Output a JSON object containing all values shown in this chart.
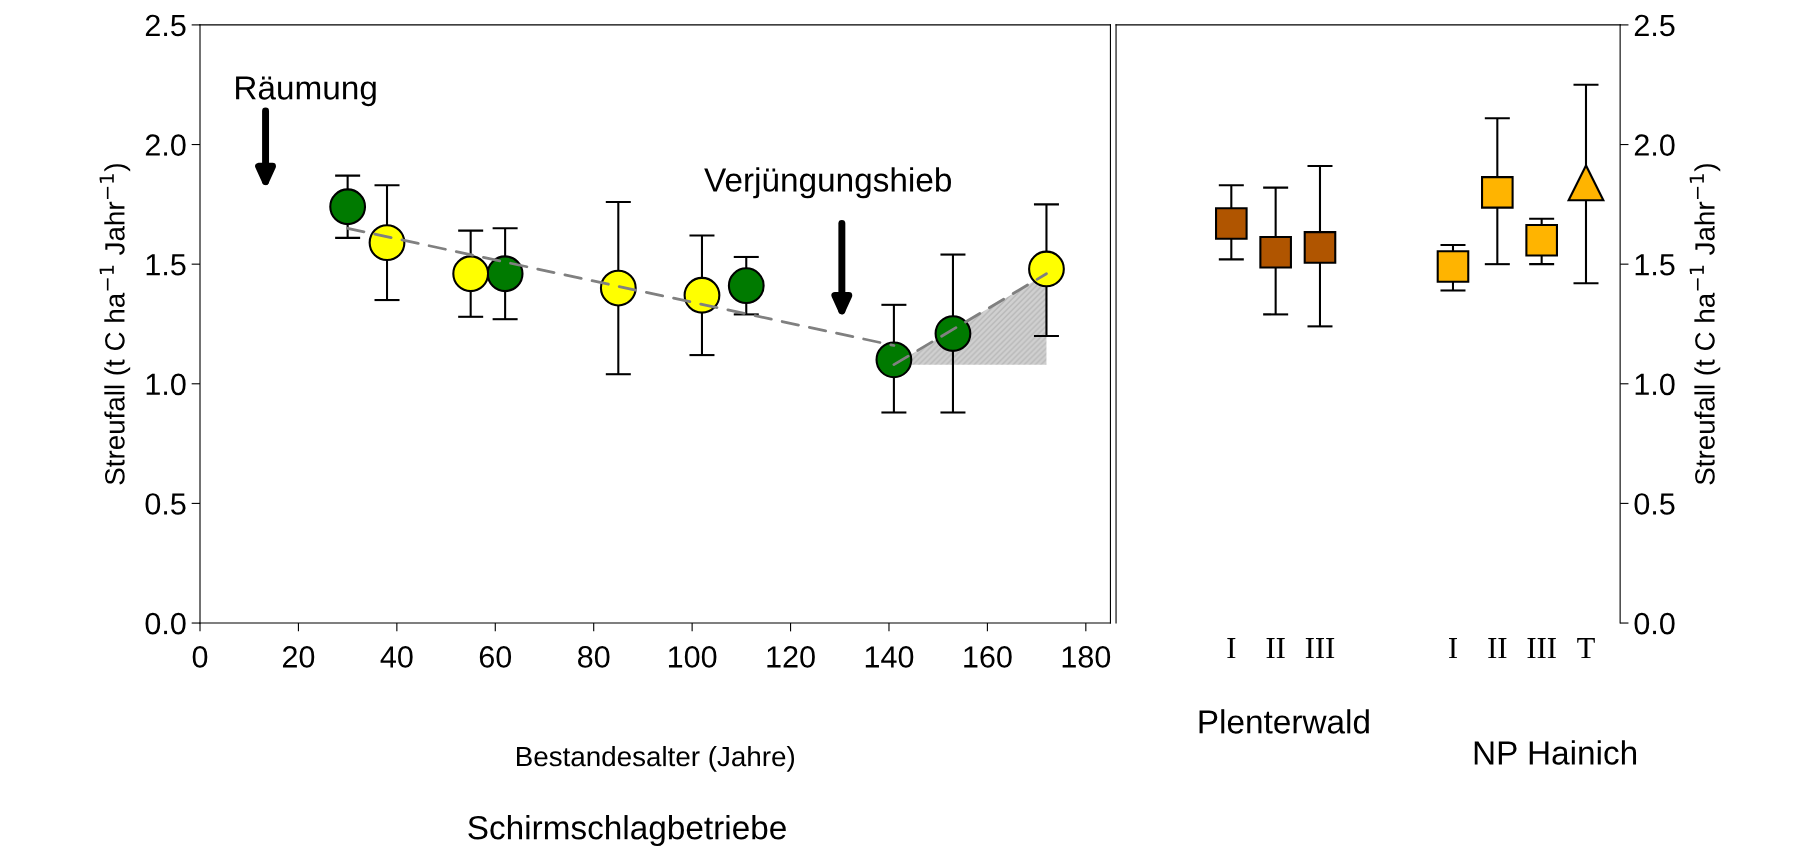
{
  "chart_data": [
    {
      "type": "scatter",
      "xlabel": "Bestandesalter (Jahre)",
      "ylabel": "Streufall (t C ha$^{−1}$ Jahr$^{−1}$)",
      "xlim": [
        0,
        185
      ],
      "xticks": [
        0,
        20,
        40,
        60,
        80,
        100,
        120,
        140,
        160,
        180
      ],
      "ylim": [
        0,
        2.5
      ],
      "yticks": [
        {
          "value": 0,
          "label": "0.0"
        },
        {
          "value": 0.5,
          "label": "0.5"
        },
        {
          "value": 1,
          "label": "1.0"
        },
        {
          "value": 1.5,
          "label": "1.5"
        },
        {
          "value": 2,
          "label": "2.0"
        },
        {
          "value": 2.5,
          "label": "2.5"
        }
      ],
      "annotations": [
        "Räumung",
        "Verjüngungshieb",
        "Schirmschlagbetriebe"
      ],
      "series": [
        {
          "type": "line",
          "color": "#808080",
          "line_style": "dashed",
          "marker": "none",
          "x": [
            30,
            141
          ],
          "values": [
            1.65,
            1.16
          ]
        },
        {
          "type": "area",
          "color": "#808080",
          "line_style": "dashed",
          "marker": "none",
          "x": [
            141,
            172
          ],
          "values": [
            1.08,
            1.46
          ]
        },
        {
          "color": "#007a00",
          "marker": "circle",
          "x": [
            30,
            62,
            111,
            141,
            153
          ],
          "values": [
            1.74,
            1.46,
            1.41,
            1.1,
            1.21
          ],
          "errors": [
            [
              1.61,
              1.87
            ],
            [
              1.27,
              1.65
            ],
            [
              1.29,
              1.53
            ],
            [
              0.88,
              1.33
            ],
            [
              0.88,
              1.54
            ]
          ]
        },
        {
          "color": "#ffff00",
          "marker": "circle",
          "x": [
            38,
            55,
            85,
            102,
            172
          ],
          "values": [
            1.59,
            1.46,
            1.4,
            1.37,
            1.48
          ],
          "errors": [
            [
              1.35,
              1.83
            ],
            [
              1.28,
              1.64
            ],
            [
              1.04,
              1.76
            ],
            [
              1.12,
              1.62
            ],
            [
              1.2,
              1.75
            ]
          ]
        }
      ]
    },
    {
      "type": "scatter",
      "ylabel": "Streufall (t C ha$^{−1}$ Jahr$^{−1}$)",
      "categories": [
        "I",
        "II",
        "III",
        null,
        null,
        "I",
        "II",
        "III",
        "T"
      ],
      "annotations": [
        "Plenterwald",
        "NP Hainich"
      ],
      "ylim": [
        0,
        2.5
      ],
      "yticks": [
        {
          "value": 0,
          "label": "0.0"
        },
        {
          "value": 0.5,
          "label": "0.5"
        },
        {
          "value": 1,
          "label": "1.0"
        },
        {
          "value": 1.5,
          "label": "1.5"
        },
        {
          "value": 2,
          "label": "2.0"
        },
        {
          "value": 2.5,
          "label": "2.5"
        }
      ],
      "series": [
        {
          "color": "#b05500",
          "marker": "square",
          "values": [
            1.67,
            1.55,
            1.57,
            null,
            null,
            null,
            null,
            null,
            null
          ],
          "errors": [
            [
              1.52,
              1.83
            ],
            [
              1.29,
              1.82
            ],
            [
              1.24,
              1.91
            ],
            null,
            null,
            null,
            null,
            null,
            null
          ]
        },
        {
          "color": "#ffb400",
          "marker": "square",
          "values": [
            null,
            null,
            null,
            null,
            null,
            1.49,
            1.8,
            1.6,
            null
          ],
          "errors": [
            null,
            null,
            null,
            null,
            null,
            [
              1.39,
              1.58
            ],
            [
              1.5,
              2.11
            ],
            [
              1.5,
              1.69
            ],
            null
          ]
        },
        {
          "color": "#ffb400",
          "marker": "triangle",
          "values": [
            null,
            null,
            null,
            null,
            null,
            null,
            null,
            null,
            1.84
          ],
          "errors": [
            null,
            null,
            null,
            null,
            null,
            null,
            null,
            null,
            [
              1.42,
              2.25
            ]
          ]
        }
      ]
    }
  ]
}
